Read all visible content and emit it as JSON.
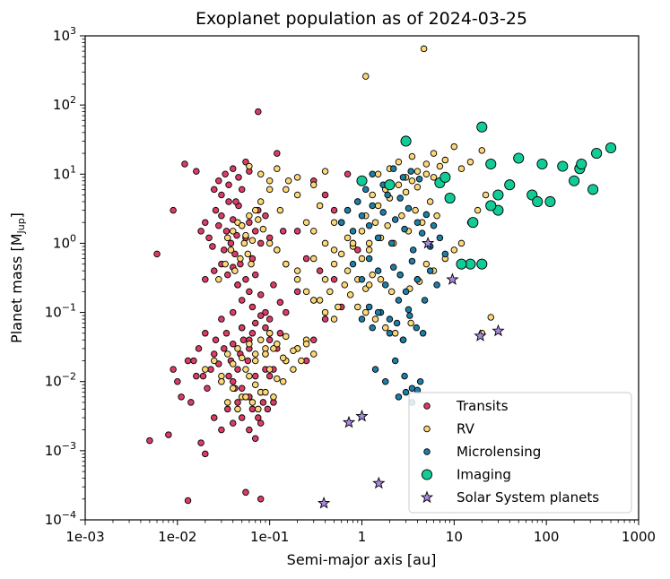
{
  "chart_data": {
    "type": "scatter",
    "title": "Exoplanet population as of 2024-03-25",
    "xlabel": "Semi-major axis [au]",
    "ylabel": "Planet mass [M_Jup]",
    "xscale": "log",
    "yscale": "log",
    "xlim": [
      0.001,
      1000
    ],
    "ylim": [
      0.0001,
      1000
    ],
    "x_tick_labels": [
      "1e-03",
      "1e-02",
      "1e-01",
      "1",
      "10",
      "100",
      "1000"
    ],
    "y_tick_exponents": [
      "-4",
      "-3",
      "-2",
      "-1",
      "0",
      "1",
      "2",
      "3"
    ],
    "legend_position": "bottom-right",
    "series": [
      {
        "name": "Transits",
        "color": "#dc3d66",
        "marker": "circle",
        "x": [
          0.005,
          0.006,
          0.008,
          0.009,
          0.012,
          0.013,
          0.016,
          0.018,
          0.02,
          0.055,
          0.075,
          0.08,
          0.01,
          0.011,
          0.014,
          0.015,
          0.017,
          0.019,
          0.021,
          0.023,
          0.025,
          0.026,
          0.028,
          0.03,
          0.032,
          0.034,
          0.036,
          0.038,
          0.04,
          0.042,
          0.045,
          0.048,
          0.05,
          0.052,
          0.058,
          0.06,
          0.065,
          0.07,
          0.09,
          0.1,
          0.11,
          0.12,
          0.13,
          0.15,
          0.018,
          0.02,
          0.022,
          0.024,
          0.026,
          0.028,
          0.03,
          0.032,
          0.034,
          0.036,
          0.038,
          0.04,
          0.042,
          0.044,
          0.046,
          0.048,
          0.05,
          0.055,
          0.06,
          0.065,
          0.07,
          0.075,
          0.08,
          0.09,
          0.1,
          0.12,
          0.14,
          0.025,
          0.028,
          0.03,
          0.033,
          0.036,
          0.04,
          0.043,
          0.046,
          0.05,
          0.055,
          0.06,
          0.045,
          0.05,
          0.055,
          0.06,
          0.065,
          0.07,
          0.08,
          0.09,
          0.1,
          0.11,
          0.13,
          0.15,
          0.2,
          0.3,
          0.4,
          0.5,
          0.6,
          0.4,
          0.5,
          0.6,
          0.3,
          0.2,
          0.15,
          0.25,
          0.35,
          0.7,
          0.8,
          0.9,
          0.02,
          0.03,
          0.04,
          0.05,
          0.06,
          0.07,
          0.08,
          0.09,
          0.1,
          0.025,
          0.035,
          0.045,
          0.055,
          0.065,
          0.075,
          0.085,
          0.095,
          0.03,
          0.04,
          0.05,
          0.06,
          0.07,
          0.08,
          0.009,
          0.013,
          0.016,
          0.04,
          0.05,
          0.06,
          0.08,
          0.11,
          0.12,
          0.09,
          0.1,
          0.2,
          0.25,
          0.3,
          0.02,
          0.025,
          0.03,
          0.035,
          0.04,
          0.045
        ],
        "y": [
          0.0014,
          0.7,
          0.0017,
          3.0,
          14.0,
          0.00019,
          11.0,
          0.0013,
          0.0009,
          0.00025,
          80.0,
          0.0002,
          0.01,
          0.006,
          0.005,
          0.02,
          0.03,
          0.012,
          0.008,
          0.015,
          0.025,
          0.04,
          0.018,
          0.01,
          0.03,
          0.05,
          0.012,
          0.02,
          0.035,
          0.008,
          0.015,
          0.025,
          0.06,
          0.04,
          0.02,
          0.03,
          0.05,
          0.012,
          0.025,
          0.04,
          0.015,
          0.03,
          0.05,
          0.02,
          1.5,
          2.0,
          1.2,
          0.9,
          3.0,
          1.8,
          2.5,
          0.8,
          1.5,
          4.0,
          1.0,
          2.2,
          0.7,
          1.3,
          3.5,
          0.5,
          1.8,
          1.2,
          2.0,
          0.6,
          1.5,
          3.0,
          1.0,
          2.5,
          1.2,
          0.8,
          1.5,
          6.0,
          8.0,
          5.0,
          10.0,
          7.0,
          12.0,
          4.0,
          9.0,
          6.0,
          15.0,
          11.0,
          0.25,
          0.15,
          0.3,
          0.2,
          0.12,
          0.35,
          0.18,
          0.1,
          0.08,
          0.25,
          0.14,
          0.1,
          0.2,
          0.15,
          0.08,
          0.3,
          0.12,
          5.0,
          3.0,
          2.0,
          8.0,
          1.5,
          0.5,
          0.6,
          0.4,
          10.0,
          1.0,
          0.8,
          0.05,
          0.08,
          0.1,
          0.06,
          0.04,
          0.07,
          0.09,
          0.06,
          0.05,
          0.003,
          0.004,
          0.005,
          0.006,
          0.004,
          0.003,
          0.005,
          0.004,
          0.002,
          0.0025,
          0.003,
          0.002,
          0.0015,
          0.0025,
          0.015,
          0.02,
          0.012,
          0.01,
          0.008,
          0.006,
          0.007,
          0.005,
          20.0,
          0.015,
          0.012,
          0.03,
          0.02,
          0.04,
          0.3,
          0.4,
          0.5,
          0.35,
          0.45,
          0.25
        ]
      },
      {
        "name": "RV",
        "color": "#fdd877",
        "marker": "circle",
        "x": [
          0.02,
          0.025,
          0.03,
          0.035,
          0.04,
          0.045,
          0.05,
          0.055,
          0.06,
          0.07,
          0.08,
          0.09,
          0.1,
          0.12,
          0.15,
          0.03,
          0.04,
          0.05,
          0.06,
          0.07,
          0.08,
          0.1,
          0.12,
          0.15,
          0.2,
          0.25,
          0.3,
          0.035,
          0.045,
          0.055,
          0.065,
          0.075,
          0.09,
          0.11,
          0.14,
          0.18,
          0.22,
          0.028,
          0.033,
          0.038,
          0.042,
          0.048,
          0.053,
          0.058,
          0.063,
          0.035,
          0.04,
          0.045,
          0.05,
          0.055,
          0.06,
          0.065,
          0.07,
          0.075,
          0.085,
          0.1,
          0.12,
          0.15,
          0.2,
          0.25,
          0.3,
          0.4,
          0.5,
          0.08,
          0.1,
          0.13,
          0.16,
          0.2,
          0.25,
          0.3,
          0.35,
          0.4,
          0.5,
          0.6,
          0.7,
          0.2,
          0.3,
          0.4,
          0.5,
          0.6,
          0.7,
          0.8,
          1.0,
          1.2,
          0.35,
          0.45,
          0.55,
          0.65,
          0.75,
          0.9,
          1.1,
          1.3,
          0.5,
          0.7,
          0.9,
          1.1,
          1.3,
          1.5,
          1.8,
          2.0,
          2.5,
          3.0,
          3.5,
          4.0,
          5.0,
          6.0,
          0.8,
          1.0,
          1.2,
          1.4,
          1.6,
          1.9,
          2.2,
          2.7,
          3.2,
          3.8,
          4.5,
          5.5,
          6.5,
          1.5,
          2.0,
          2.5,
          3.0,
          3.5,
          4.0,
          5.0,
          6.0,
          7.0,
          8.0,
          10.0,
          12.0,
          15.0,
          20.0,
          4.0,
          5.0,
          6.0,
          8.0,
          10.0,
          12.0,
          15.0,
          18.0,
          22.0,
          0.9,
          1.1,
          1.4,
          1.8,
          2.3,
          2.8,
          3.4,
          1.2,
          1.6,
          2.1,
          2.6,
          3.3,
          4.2,
          1.1,
          4.7,
          25.0,
          20.0,
          0.06,
          0.08,
          0.1,
          0.12,
          0.15,
          0.2,
          0.3,
          0.4,
          0.07,
          0.09,
          0.11,
          0.14,
          0.18,
          0.25
        ],
        "y": [
          0.015,
          0.02,
          0.012,
          0.025,
          0.018,
          0.03,
          0.022,
          0.015,
          0.035,
          0.025,
          0.04,
          0.03,
          0.05,
          0.035,
          0.045,
          0.01,
          0.008,
          0.006,
          0.012,
          0.009,
          0.007,
          0.015,
          0.011,
          0.02,
          0.03,
          0.04,
          0.025,
          0.005,
          0.004,
          0.006,
          0.005,
          0.004,
          0.007,
          0.006,
          0.01,
          0.015,
          0.02,
          0.3,
          0.5,
          0.8,
          0.4,
          0.6,
          1.0,
          0.7,
          0.5,
          1.2,
          1.5,
          2.0,
          1.8,
          1.3,
          2.5,
          1.1,
          3.0,
          2.2,
          1.6,
          1.0,
          0.8,
          0.5,
          0.3,
          0.2,
          0.15,
          0.1,
          0.08,
          4.0,
          6.0,
          3.0,
          8.0,
          5.0,
          2.0,
          1.5,
          3.5,
          1.0,
          0.8,
          2.0,
          1.2,
          0.4,
          0.6,
          0.3,
          0.5,
          0.7,
          0.4,
          0.9,
          0.6,
          1.0,
          0.15,
          0.2,
          0.12,
          0.25,
          0.18,
          0.3,
          0.22,
          0.35,
          2.0,
          3.0,
          4.0,
          2.5,
          5.0,
          3.5,
          6.0,
          4.5,
          7.0,
          5.5,
          8.0,
          6.5,
          10.0,
          9.0,
          1.0,
          1.5,
          0.8,
          2.0,
          1.2,
          1.8,
          1.0,
          2.5,
          1.5,
          3.0,
          2.0,
          4.0,
          2.5,
          10.0,
          12.0,
          15.0,
          9.0,
          18.0,
          11.0,
          14.0,
          20.0,
          13.0,
          16.0,
          25.0,
          12.0,
          15.0,
          22.0,
          0.3,
          0.5,
          0.4,
          0.6,
          0.8,
          1.0,
          2.0,
          3.0,
          5.0,
          0.12,
          0.1,
          0.08,
          0.06,
          0.05,
          0.04,
          0.07,
          0.25,
          0.3,
          0.2,
          0.35,
          0.22,
          0.28,
          260.0,
          650.0,
          0.085,
          0.05,
          13.0,
          10.0,
          8.0,
          12.0,
          6.0,
          9.0,
          7.0,
          11.0,
          0.02,
          0.025,
          0.03,
          0.022,
          0.028,
          0.035
        ]
      },
      {
        "name": "Microlensing",
        "color": "#1e7fa6",
        "marker": "circle",
        "x": [
          0.6,
          0.7,
          0.8,
          0.9,
          1.0,
          1.1,
          1.2,
          1.3,
          1.5,
          1.7,
          1.9,
          2.1,
          2.3,
          2.6,
          2.9,
          3.2,
          3.6,
          4.0,
          4.5,
          5.0,
          5.5,
          6.0,
          7.0,
          8.0,
          0.8,
          1.0,
          1.2,
          1.5,
          1.8,
          2.2,
          2.6,
          3.0,
          3.5,
          4.0,
          4.8,
          5.5,
          6.5,
          1.0,
          1.3,
          1.6,
          2.0,
          2.4,
          2.8,
          3.3,
          3.9,
          4.6,
          1.4,
          1.8,
          2.3,
          2.9,
          3.5,
          4.3,
          2.5,
          3.0,
          3.5,
          4.0,
          1.0,
          1.3,
          1.7,
          2.2,
          2.8,
          3.4,
          4.2,
          1.2,
          1.5,
          2.0,
          2.5,
          3.2
        ],
        "y": [
          2.0,
          3.0,
          1.5,
          4.0,
          2.5,
          6.0,
          1.8,
          3.5,
          1.2,
          2.8,
          5.0,
          1.0,
          2.2,
          4.5,
          1.6,
          3.2,
          0.8,
          2.0,
          1.4,
          2.6,
          0.9,
          1.8,
          1.2,
          0.7,
          0.5,
          0.3,
          0.6,
          0.4,
          0.25,
          0.45,
          0.35,
          0.2,
          0.55,
          0.3,
          0.15,
          0.4,
          0.25,
          0.08,
          0.06,
          0.1,
          0.05,
          0.07,
          0.04,
          0.09,
          0.06,
          0.05,
          0.015,
          0.01,
          0.02,
          0.012,
          0.008,
          0.01,
          0.006,
          0.007,
          0.005,
          0.0075,
          8.0,
          10.0,
          7.0,
          12.0,
          9.0,
          11.0,
          8.5,
          0.12,
          0.1,
          0.08,
          0.15,
          0.11
        ]
      },
      {
        "name": "Imaging",
        "color": "#12cc98",
        "marker": "circle-large",
        "x": [
          2.0,
          3.0,
          1.0,
          7.0,
          8.0,
          9.0,
          16.0,
          20.0,
          25.0,
          30.0,
          40.0,
          50.0,
          70.0,
          80.0,
          90.0,
          110.0,
          150.0,
          200.0,
          230.0,
          240.0,
          320.0,
          350.0,
          500.0,
          30.0,
          15.0,
          12.0,
          20.0,
          25.0
        ],
        "y": [
          7.0,
          30.0,
          8.0,
          7.5,
          9.0,
          4.5,
          2.0,
          48.0,
          14.0,
          5.0,
          7.0,
          17.0,
          5.0,
          4.0,
          14.0,
          4.0,
          13.0,
          8.0,
          12.0,
          14.0,
          6.0,
          20.0,
          24.0,
          3.0,
          0.5,
          0.5,
          0.5,
          3.5
        ]
      },
      {
        "name": "Solar System planets",
        "color": "#a98ae3",
        "marker": "star",
        "x": [
          0.387,
          0.723,
          1.0,
          1.524,
          5.2,
          9.58,
          19.2,
          30.05
        ],
        "y": [
          0.000174,
          0.00256,
          0.00315,
          0.000338,
          1.0,
          0.299,
          0.0457,
          0.054
        ]
      }
    ]
  }
}
